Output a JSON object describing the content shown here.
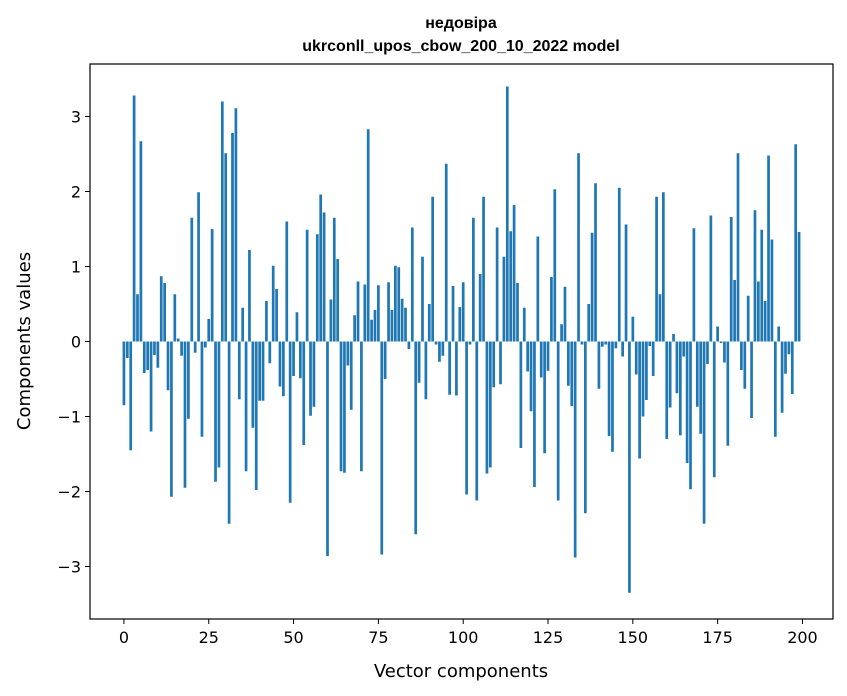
{
  "chart_data": {
    "type": "bar",
    "title": "недовіра",
    "subtitle": "ukrconll_upos_cbow_200_10_2022 model",
    "xlabel": "Vector components",
    "ylabel": "Components values",
    "xlim": [
      -10,
      209
    ],
    "ylim": [
      -3.7,
      3.7
    ],
    "xticks": [
      0,
      25,
      50,
      75,
      100,
      125,
      150,
      175,
      200
    ],
    "yticks": [
      -3,
      -2,
      -1,
      0,
      1,
      2,
      3
    ],
    "bar_color": "#1f77b4",
    "grid": false,
    "legend": "none",
    "x": [
      0,
      1,
      2,
      3,
      4,
      5,
      6,
      7,
      8,
      9,
      10,
      11,
      12,
      13,
      14,
      15,
      16,
      17,
      18,
      19,
      20,
      21,
      22,
      23,
      24,
      25,
      26,
      27,
      28,
      29,
      30,
      31,
      32,
      33,
      34,
      35,
      36,
      37,
      38,
      39,
      40,
      41,
      42,
      43,
      44,
      45,
      46,
      47,
      48,
      49,
      50,
      51,
      52,
      53,
      54,
      55,
      56,
      57,
      58,
      59,
      60,
      61,
      62,
      63,
      64,
      65,
      66,
      67,
      68,
      69,
      70,
      71,
      72,
      73,
      74,
      75,
      76,
      77,
      78,
      79,
      80,
      81,
      82,
      83,
      84,
      85,
      86,
      87,
      88,
      89,
      90,
      91,
      92,
      93,
      94,
      95,
      96,
      97,
      98,
      99,
      100,
      101,
      102,
      103,
      104,
      105,
      106,
      107,
      108,
      109,
      110,
      111,
      112,
      113,
      114,
      115,
      116,
      117,
      118,
      119,
      120,
      121,
      122,
      123,
      124,
      125,
      126,
      127,
      128,
      129,
      130,
      131,
      132,
      133,
      134,
      135,
      136,
      137,
      138,
      139,
      140,
      141,
      142,
      143,
      144,
      145,
      146,
      147,
      148,
      149,
      150,
      151,
      152,
      153,
      154,
      155,
      156,
      157,
      158,
      159,
      160,
      161,
      162,
      163,
      164,
      165,
      166,
      167,
      168,
      169,
      170,
      171,
      172,
      173,
      174,
      175,
      176,
      177,
      178,
      179,
      180,
      181,
      182,
      183,
      184,
      185,
      186,
      187,
      188,
      189,
      190,
      191,
      192,
      193,
      194,
      195,
      196,
      197,
      198,
      199
    ],
    "values": [
      -0.85,
      -0.22,
      -1.45,
      3.28,
      0.63,
      2.67,
      -0.42,
      -0.38,
      -1.2,
      -0.18,
      -0.35,
      0.87,
      0.78,
      -0.65,
      -2.07,
      0.63,
      0.04,
      -0.19,
      -1.95,
      -1.03,
      1.65,
      -0.15,
      1.99,
      -1.27,
      -0.08,
      0.3,
      1.5,
      -1.87,
      -1.68,
      3.2,
      2.51,
      -2.43,
      2.78,
      3.11,
      -0.77,
      0.45,
      -1.73,
      1.22,
      -1.15,
      -1.98,
      -0.79,
      -0.79,
      0.54,
      -0.29,
      1.01,
      0.7,
      -0.6,
      -0.73,
      1.6,
      -2.15,
      -0.46,
      0.39,
      -0.49,
      -1.38,
      1.49,
      -0.99,
      -0.87,
      1.43,
      1.96,
      1.72,
      -2.86,
      0.56,
      1.65,
      1.1,
      -1.73,
      -1.75,
      -0.32,
      -0.91,
      0.35,
      0.8,
      -1.73,
      0.76,
      2.83,
      0.29,
      0.42,
      0.75,
      -2.84,
      -0.5,
      0.79,
      0.42,
      1.01,
      0.99,
      0.57,
      0.45,
      -0.1,
      1.52,
      -2.57,
      -0.55,
      1.13,
      -0.77,
      0.5,
      1.93,
      -0.04,
      -0.27,
      -0.19,
      2.37,
      -0.71,
      0.74,
      -0.72,
      0.46,
      0.79,
      -2.04,
      -0.04,
      1.65,
      -2.12,
      0.9,
      1.93,
      -1.76,
      -1.68,
      -0.61,
      1.52,
      -0.57,
      1.13,
      3.4,
      1.47,
      1.82,
      0.78,
      -1.42,
      0.45,
      -0.4,
      -0.93,
      -1.94,
      1.4,
      -0.48,
      -1.49,
      -0.39,
      0.86,
      2.03,
      -2.12,
      0.23,
      0.73,
      -0.59,
      -0.86,
      -2.88,
      2.51,
      -0.04,
      -2.29,
      0.5,
      1.45,
      2.11,
      -0.63,
      -0.07,
      -0.04,
      -1.26,
      -1.47,
      -0.09,
      2.05,
      -0.2,
      1.56,
      -3.35,
      0.33,
      -0.44,
      -1.56,
      -1.0,
      -0.78,
      -0.06,
      -0.46,
      1.93,
      0.63,
      1.99,
      -1.3,
      -0.88,
      0.1,
      -0.69,
      -1.25,
      -0.2,
      -1.62,
      -1.97,
      1.51,
      -0.87,
      -1.23,
      -2.43,
      -0.3,
      1.68,
      -1.81,
      0.2,
      -0.02,
      -0.28,
      -1.39,
      1.66,
      0.82,
      2.51,
      -0.38,
      -0.63,
      0.61,
      -1.02,
      1.75,
      0.8,
      1.49,
      0.54,
      2.48,
      1.36,
      -1.27,
      0.2,
      -0.95,
      -0.43,
      -0.17,
      -0.7,
      2.63,
      1.46
    ]
  }
}
